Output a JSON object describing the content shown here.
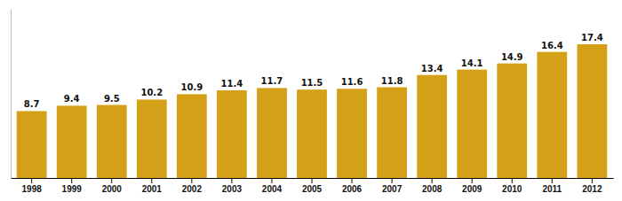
{
  "chart_data": {
    "type": "bar",
    "categories": [
      "1998",
      "1999",
      "2000",
      "2001",
      "2002",
      "2003",
      "2004",
      "2005",
      "2006",
      "2007",
      "2008",
      "2009",
      "2010",
      "2011",
      "2012"
    ],
    "values": [
      8.7,
      9.4,
      9.5,
      10.2,
      10.9,
      11.4,
      11.7,
      11.5,
      11.6,
      11.8,
      13.4,
      14.1,
      14.9,
      16.4,
      17.4
    ],
    "color": "#D4A017",
    "ylim": [
      0,
      22
    ],
    "grid": false,
    "data_labels": true,
    "tick_labels": "x"
  }
}
